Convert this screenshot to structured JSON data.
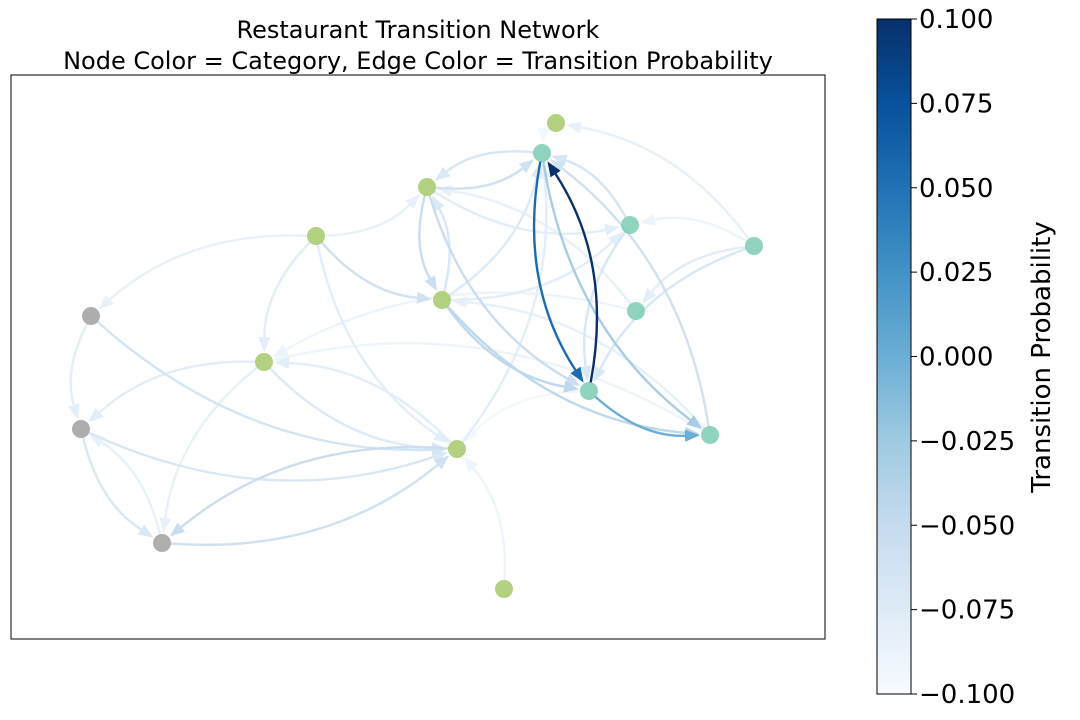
{
  "title": {
    "line1": "Restaurant Transition Network",
    "line2": "Node Color = Category, Edge Color = Transition Probability"
  },
  "colorbar": {
    "label": "Transition Probability",
    "min": -0.1,
    "max": 0.1,
    "ticks": [
      "0.100",
      "0.075",
      "0.050",
      "0.025",
      "0.000",
      "−0.025",
      "−0.050",
      "−0.075",
      "−0.100"
    ],
    "tick_values": [
      0.1,
      0.075,
      0.05,
      0.025,
      0.0,
      -0.025,
      -0.05,
      -0.075,
      -0.1
    ],
    "colormap": "Blues",
    "color_stops": [
      "#f7fbff",
      "#deebf7",
      "#c6dbef",
      "#9ecae1",
      "#6baed6",
      "#4292c6",
      "#2171b5",
      "#08519c",
      "#08306b"
    ]
  },
  "category_colors": {
    "green": "#a6c96a",
    "teal": "#7ccbb4",
    "gray": "#a0a0a0"
  },
  "nodes": [
    {
      "id": "g1",
      "cat": "green"
    },
    {
      "id": "t1",
      "cat": "teal"
    },
    {
      "id": "g2",
      "cat": "green"
    },
    {
      "id": "g3",
      "cat": "green"
    },
    {
      "id": "t2",
      "cat": "teal"
    },
    {
      "id": "t3",
      "cat": "teal"
    },
    {
      "id": "g4",
      "cat": "green"
    },
    {
      "id": "t4",
      "cat": "teal"
    },
    {
      "id": "a1",
      "cat": "gray"
    },
    {
      "id": "g5",
      "cat": "green"
    },
    {
      "id": "t5",
      "cat": "teal"
    },
    {
      "id": "a2",
      "cat": "gray"
    },
    {
      "id": "t6",
      "cat": "teal"
    },
    {
      "id": "g6",
      "cat": "green"
    },
    {
      "id": "a3",
      "cat": "gray"
    },
    {
      "id": "g7",
      "cat": "green"
    }
  ],
  "edges": [
    {
      "from": "t5",
      "to": "t1",
      "w": 0.1
    },
    {
      "from": "t1",
      "to": "t5",
      "w": 0.055
    },
    {
      "from": "t5",
      "to": "t6",
      "w": 0.0
    },
    {
      "from": "t1",
      "to": "t6",
      "w": -0.03
    },
    {
      "from": "g4",
      "to": "t6",
      "w": -0.045
    },
    {
      "from": "g4",
      "to": "t5",
      "w": -0.045
    },
    {
      "from": "g2",
      "to": "g4",
      "w": -0.055
    },
    {
      "from": "g2",
      "to": "t1",
      "w": -0.06
    },
    {
      "from": "g3",
      "to": "g5",
      "w": -0.08
    },
    {
      "from": "g3",
      "to": "g4",
      "w": -0.06
    },
    {
      "from": "g3",
      "to": "g2",
      "w": -0.085
    },
    {
      "from": "a1",
      "to": "g6",
      "w": -0.065
    },
    {
      "from": "a2",
      "to": "a3",
      "w": -0.07
    },
    {
      "from": "a3",
      "to": "g6",
      "w": -0.06
    },
    {
      "from": "g6",
      "to": "a3",
      "w": -0.055
    },
    {
      "from": "g5",
      "to": "a2",
      "w": -0.08
    },
    {
      "from": "a2",
      "to": "g6",
      "w": -0.07
    },
    {
      "from": "g5",
      "to": "g6",
      "w": -0.075
    },
    {
      "from": "t3",
      "to": "t5",
      "w": -0.07
    },
    {
      "from": "t2",
      "to": "t4",
      "w": -0.08
    },
    {
      "from": "t2",
      "to": "g1",
      "w": -0.085
    },
    {
      "from": "t3",
      "to": "t1",
      "w": -0.065
    },
    {
      "from": "t6",
      "to": "t1",
      "w": -0.06
    },
    {
      "from": "t2",
      "to": "t3",
      "w": -0.09
    },
    {
      "from": "g4",
      "to": "t3",
      "w": -0.08
    },
    {
      "from": "g2",
      "to": "t5",
      "w": -0.055
    },
    {
      "from": "t4",
      "to": "g2",
      "w": -0.085
    },
    {
      "from": "g7",
      "to": "g6",
      "w": -0.09
    },
    {
      "from": "t5",
      "to": "g6",
      "w": -0.095
    },
    {
      "from": "g3",
      "to": "a1",
      "w": -0.085
    },
    {
      "from": "a1",
      "to": "a2",
      "w": -0.08
    },
    {
      "from": "g5",
      "to": "a3",
      "w": -0.085
    },
    {
      "from": "a3",
      "to": "a2",
      "w": -0.085
    },
    {
      "from": "g6",
      "to": "g5",
      "w": -0.08
    },
    {
      "from": "t6",
      "to": "g5",
      "w": -0.09
    },
    {
      "from": "t1",
      "to": "g2",
      "w": -0.07
    },
    {
      "from": "g4",
      "to": "g2",
      "w": -0.07
    },
    {
      "from": "t2",
      "to": "t5",
      "w": -0.07
    },
    {
      "from": "g2",
      "to": "t3",
      "w": -0.08
    },
    {
      "from": "g4",
      "to": "t1",
      "w": -0.075
    },
    {
      "from": "t6",
      "to": "g4",
      "w": -0.085
    },
    {
      "from": "g3",
      "to": "g6",
      "w": -0.08
    },
    {
      "from": "g6",
      "to": "t1",
      "w": -0.08
    },
    {
      "from": "g1",
      "to": "t1",
      "w": -0.095
    },
    {
      "from": "t4",
      "to": "g5",
      "w": -0.09
    }
  ]
}
